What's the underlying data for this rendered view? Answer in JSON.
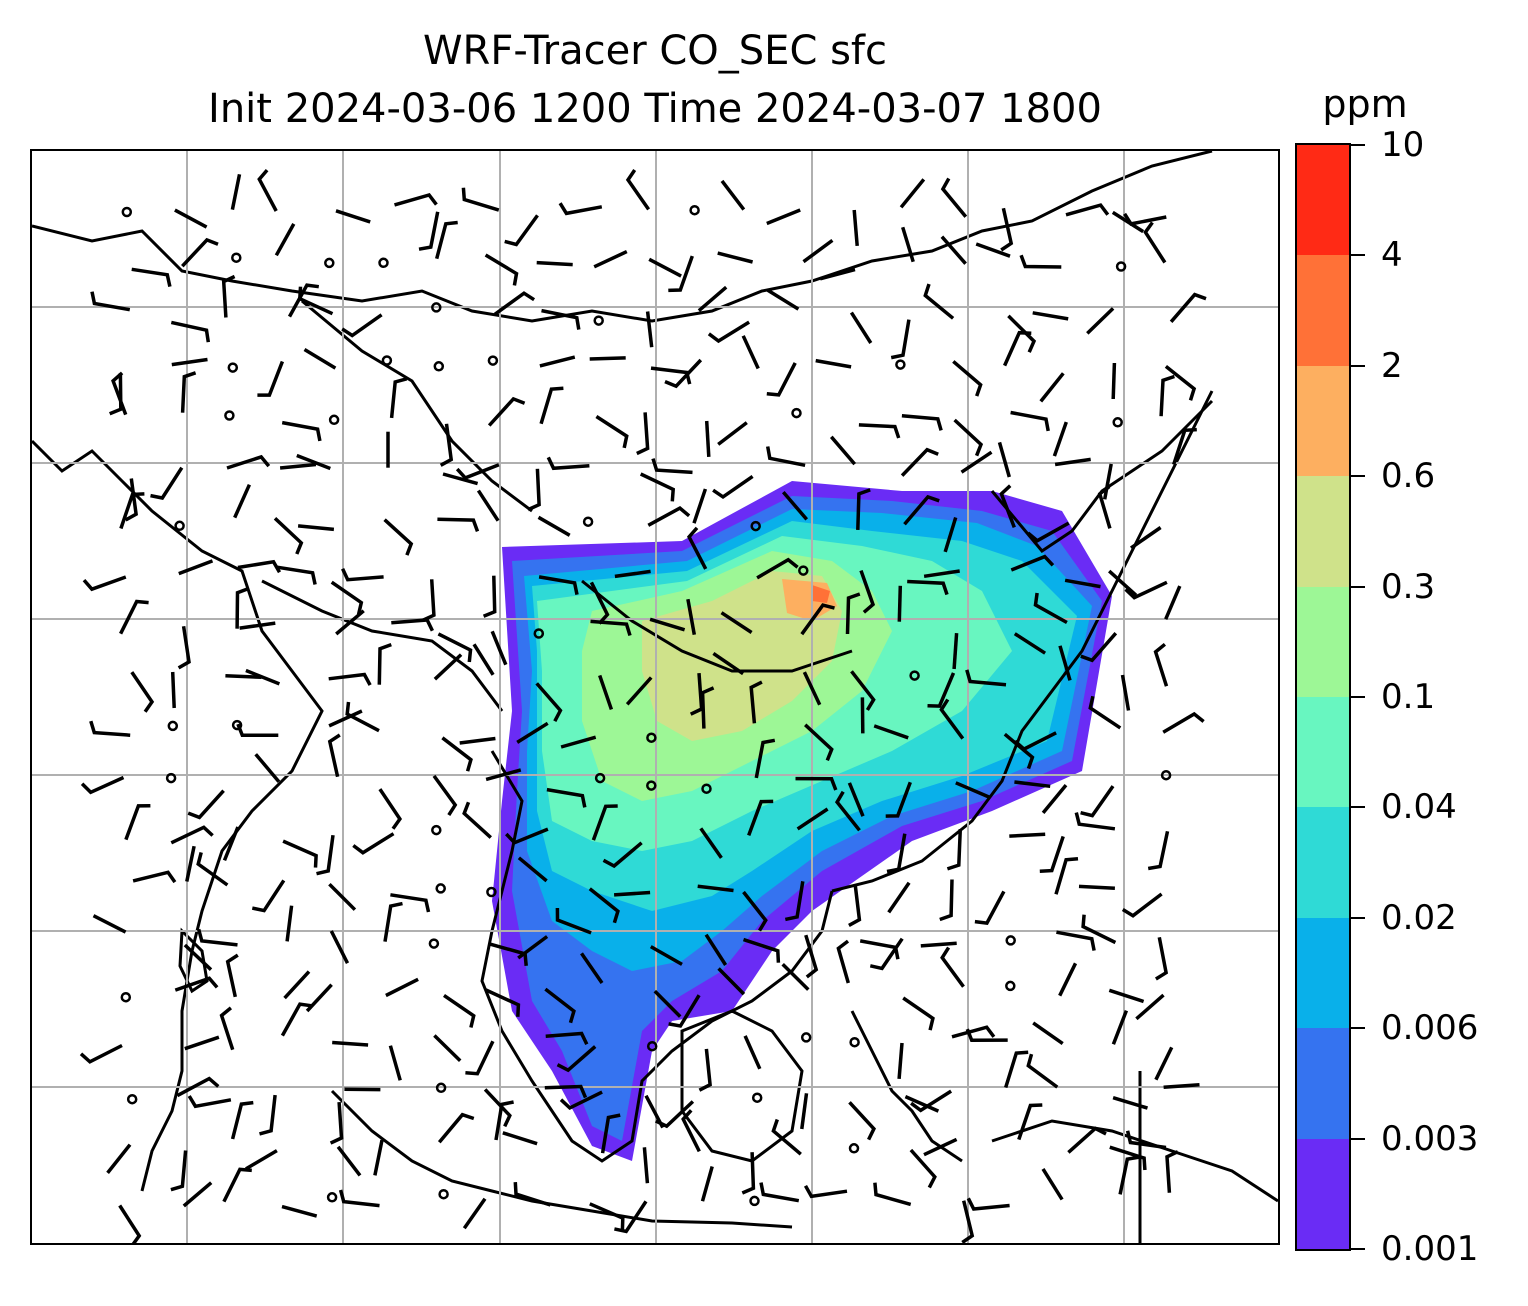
{
  "title": {
    "line1": "WRF-Tracer CO_SEC sfc",
    "line2": "Init 2024-03-06 1200 Time 2024-03-07 1800"
  },
  "colorbar": {
    "unit": "ppm",
    "tick_labels": [
      "0.001",
      "0.003",
      "0.006",
      "0.02",
      "0.04",
      "0.1",
      "0.3",
      "0.6",
      "2",
      "4",
      "10"
    ],
    "colors": [
      "#6a2cf5",
      "#3573f0",
      "#09b0ea",
      "#2fdad6",
      "#68f6c0",
      "#9df796",
      "#cfe28a",
      "#fdaf60",
      "#ff7137",
      "#ff2a15"
    ]
  },
  "map": {
    "gridline_color": "#b0b0b0",
    "coastline_color": "#000000",
    "field_variable": "CO_SEC",
    "overlay": "wind barbs and calm-wind circles",
    "gridlines": "on"
  }
}
